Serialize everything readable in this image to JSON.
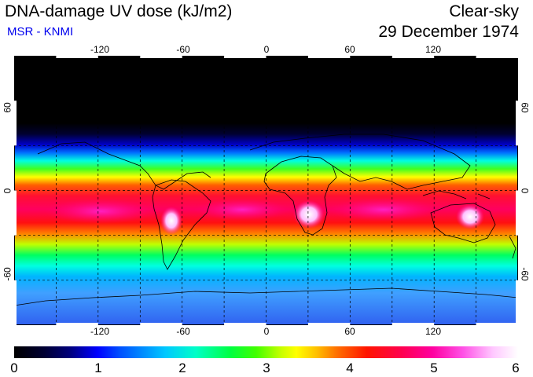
{
  "header": {
    "title": "DNA-damage UV dose (kJ/m2)",
    "subtitle": "MSR - KNMI",
    "condition": "Clear-sky",
    "date": "29 December 1974"
  },
  "map": {
    "longitude_ticks": [
      "-120",
      "-60",
      "0",
      "60",
      "120"
    ],
    "latitude_ticks": [
      "60",
      "0",
      "-60"
    ],
    "lon_range": [
      -180,
      180
    ],
    "lat_range": [
      -90,
      90
    ],
    "gridlines": "dashed every 30 degrees",
    "projection": "plate carree"
  },
  "colorbar": {
    "labels": [
      "0",
      "1",
      "2",
      "3",
      "4",
      "5",
      "6"
    ],
    "range": [
      0,
      6
    ],
    "unit": "kJ/m2"
  },
  "colors": {
    "subtitle": "#0000ee",
    "polar_night": "#000000",
    "equatorial_max": "#ff0050",
    "peak": "#ffffff"
  }
}
